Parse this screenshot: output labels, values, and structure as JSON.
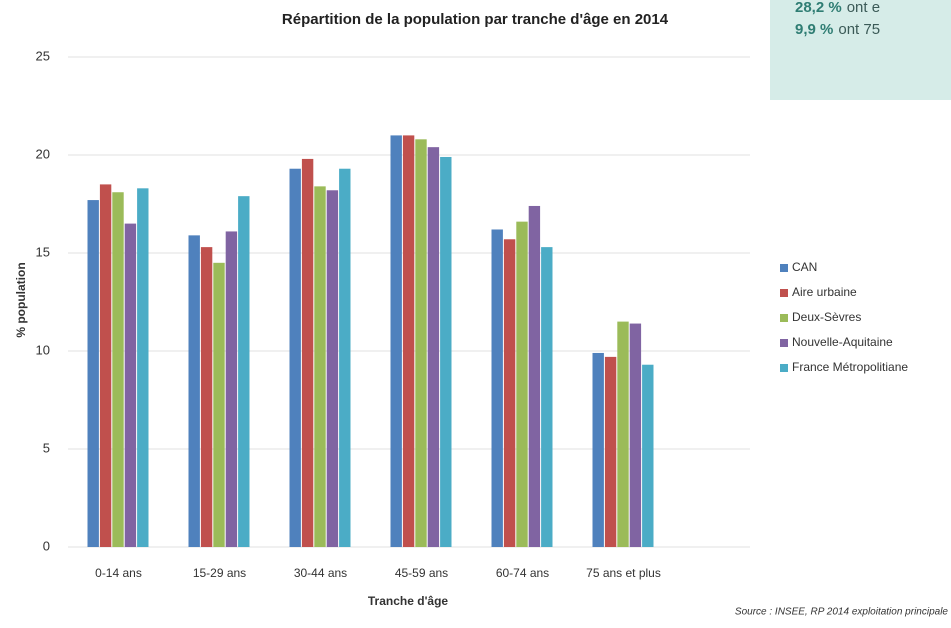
{
  "chart_data": {
    "type": "bar",
    "title": "Répartition de la population par tranche d'âge en 2014",
    "x_label": "Tranche d'âge",
    "y_label": "% population",
    "source": "Source : INSEE, RP 2014 exploitation principale",
    "categories": [
      "0-14 ans",
      "15-29 ans",
      "30-44 ans",
      "45-59 ans",
      "60-74 ans",
      "75 ans et plus"
    ],
    "series": [
      {
        "name": "CAN",
        "color": "#4f81bd",
        "values": [
          17.7,
          15.9,
          19.3,
          21.0,
          16.2,
          9.9
        ]
      },
      {
        "name": "Aire urbaine",
        "color": "#c0504d",
        "values": [
          18.5,
          15.3,
          19.8,
          21.0,
          15.7,
          9.7
        ]
      },
      {
        "name": "Deux-Sèvres",
        "color": "#9bbb59",
        "values": [
          18.1,
          14.5,
          18.4,
          20.8,
          16.6,
          11.5
        ]
      },
      {
        "name": "Nouvelle-Aquitaine",
        "color": "#8064a2",
        "values": [
          16.5,
          16.1,
          18.2,
          20.4,
          17.4,
          11.4
        ]
      },
      {
        "name": "France Métropolitiane",
        "color": "#4bacc6",
        "values": [
          18.3,
          17.9,
          19.3,
          19.9,
          15.3,
          9.3
        ]
      }
    ],
    "ylim": [
      0,
      25
    ],
    "yticks": [
      0,
      5,
      10,
      15,
      20,
      25
    ],
    "grid": true,
    "legend": "right",
    "annotations": [
      {
        "bold": "28,2 %",
        "text": "ont e"
      },
      {
        "bold": "9,9 %",
        "text": "ont 75"
      }
    ]
  }
}
